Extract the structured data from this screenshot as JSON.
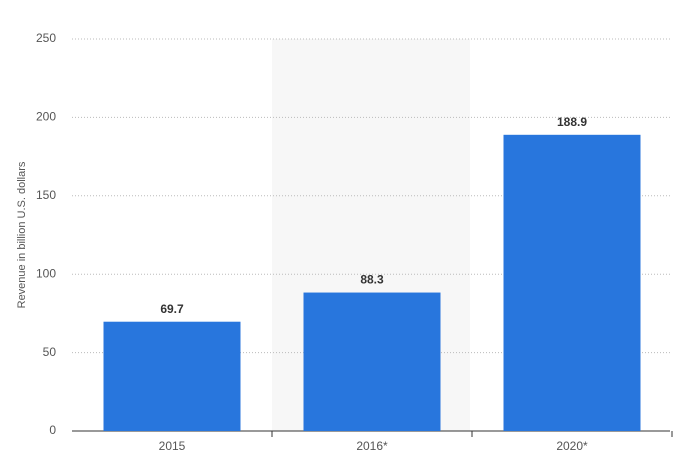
{
  "chart_data": {
    "type": "bar",
    "y_label": "Revenue in billion U.S. dollars",
    "categories": [
      "2015",
      "2016*",
      "2020*"
    ],
    "values": [
      69.7,
      88.3,
      188.9
    ],
    "color": "#2876dd",
    "ylim": [
      0,
      250
    ],
    "yticks": [
      0,
      50,
      100,
      150,
      200,
      250
    ],
    "grid": true
  }
}
